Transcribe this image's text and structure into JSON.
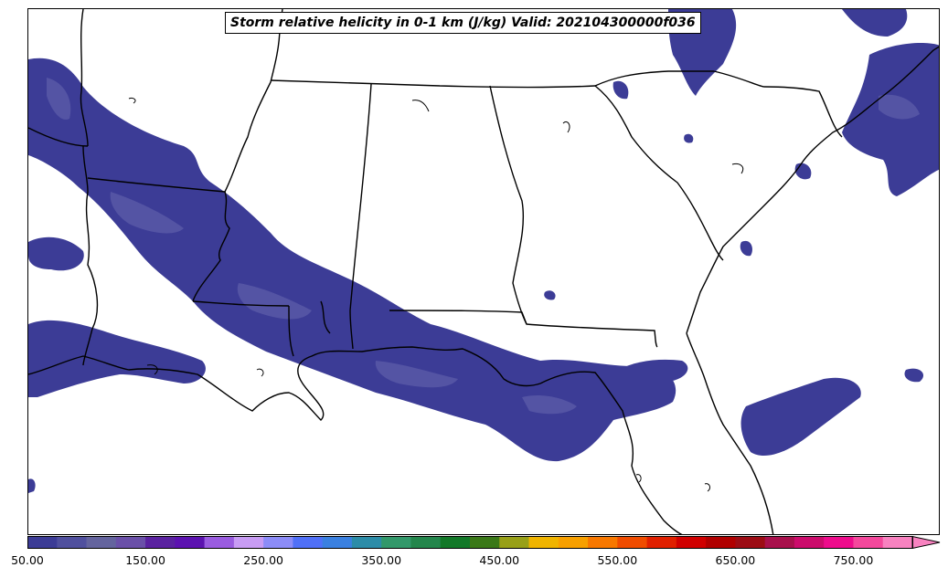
{
  "title": "Storm relative helicity in 0-1 km (J/kg) Valid: 202104300000f036",
  "colorbar": {
    "ticks": [
      "50.00",
      "150.00",
      "250.00",
      "350.00",
      "450.00",
      "550.00",
      "650.00",
      "750.00"
    ],
    "tick_values": [
      50,
      150,
      250,
      350,
      450,
      550,
      650,
      750
    ],
    "min": 50,
    "step": 25,
    "extend": "max",
    "colors": [
      "#3c3c96",
      "#50509e",
      "#64649e",
      "#6a50a8",
      "#5a22a0",
      "#5c12b0",
      "#9a5ce0",
      "#c89cf4",
      "#8c8cf8",
      "#5070f8",
      "#3a80e0",
      "#2c8ca8",
      "#32986a",
      "#24864c",
      "#127828",
      "#3a7818",
      "#98a018",
      "#f0b400",
      "#f8a000",
      "#f87800",
      "#f04c00",
      "#e02000",
      "#d00000",
      "#b00000",
      "#9c0c14",
      "#a8104c",
      "#cc0c6c",
      "#ee0c8c",
      "#f4489c",
      "#f882c0"
    ]
  },
  "map": {
    "field": "Storm relative helicity in 0-1 km",
    "units": "J/kg",
    "shaded_fill": "#3c3c96",
    "shaded_fill_secondary": "#5454a4",
    "boundary_color": "#000000"
  }
}
